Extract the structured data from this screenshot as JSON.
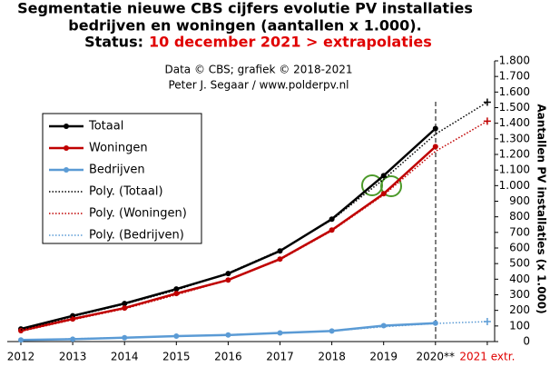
{
  "chart_data": {
    "type": "line",
    "title": [
      "Segmentatie nieuwe CBS cijfers evolutie PV installaties",
      "bedrijven en woningen (aantallen x 1.000)."
    ],
    "status_label": "Status:",
    "status": "10 december 2021 > extrapolaties",
    "credits": [
      "Data © CBS; grafiek © 2018-2021",
      "Peter J. Segaar / www.polderpv.nl"
    ],
    "y_label": "Aantallen PV installaties (x 1.000)",
    "categories": [
      "2012",
      "2013",
      "2014",
      "2015",
      "2016",
      "2017",
      "2018",
      "2019",
      "2020**",
      "2021 extr."
    ],
    "series": [
      {
        "name": "Totaal",
        "color": "#000000",
        "style": "solid",
        "values": [
          81,
          165,
          244,
          337,
          436,
          581,
          785,
          1064,
          1366,
          null
        ]
      },
      {
        "name": "Woningen",
        "color": "#c00000",
        "style": "solid",
        "values": [
          70,
          145,
          215,
          308,
          395,
          529,
          715,
          948,
          1250,
          null
        ]
      },
      {
        "name": "Bedrijven",
        "color": "#5b9bd5",
        "style": "solid",
        "values": [
          10,
          15,
          25,
          35,
          42,
          55,
          68,
          102,
          118,
          null
        ]
      },
      {
        "name": "Poly. (Totaal)",
        "color": "#000000",
        "style": "dotted",
        "values": [
          75,
          160,
          240,
          330,
          440,
          585,
          780,
          1040,
          1330,
          1535
        ]
      },
      {
        "name": "Poly. (Woningen)",
        "color": "#c00000",
        "style": "dotted",
        "values": [
          65,
          140,
          210,
          300,
          395,
          525,
          710,
          940,
          1220,
          1413
        ]
      },
      {
        "name": "Poly. (Bedrijven)",
        "color": "#5b9bd5",
        "style": "dotted",
        "values": [
          8,
          18,
          26,
          35,
          44,
          55,
          68,
          95,
          116,
          128
        ]
      }
    ],
    "ylim": [
      0,
      1800
    ],
    "yticks": [
      0,
      100,
      200,
      300,
      400,
      500,
      600,
      700,
      800,
      900,
      {
        "value": 1000,
        "label": "1.000"
      },
      {
        "value": 1100,
        "label": "1.100"
      },
      {
        "value": 1200,
        "label": "1.200"
      },
      {
        "value": 1300,
        "label": "1.300"
      },
      {
        "value": 1400,
        "label": "1.400"
      },
      {
        "value": 1500,
        "label": "1.500"
      },
      {
        "value": 1600,
        "label": "1.600"
      },
      {
        "value": 1700,
        "label": "1.700"
      },
      {
        "value": 1800,
        "label": "1.800"
      }
    ],
    "grid": false
  }
}
